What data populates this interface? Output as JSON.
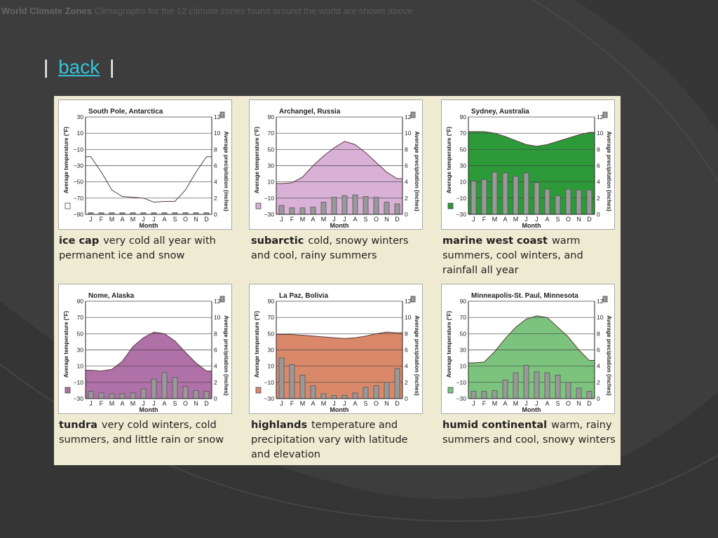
{
  "header": {
    "title": "World Climate Zones",
    "subtitle": "Climagraphs for the 12 climate zones found around the world are shown above"
  },
  "nav": {
    "sep_left": "|",
    "back_label": "back",
    "sep_right": "|"
  },
  "axes": {
    "temp_label": "Average temperature (°F)",
    "precip_label": "Average precipitation (inches)",
    "month_label": "Month",
    "months": [
      "J",
      "F",
      "M",
      "A",
      "M",
      "J",
      "J",
      "A",
      "S",
      "O",
      "N",
      "D"
    ],
    "temp_ticks": [
      "90",
      "70",
      "50",
      "30",
      "10",
      "−10",
      "−30",
      "−50",
      "−70",
      "−90"
    ],
    "precip_ticks": [
      "12",
      "10",
      "8",
      "6",
      "4",
      "2",
      "0"
    ]
  },
  "chart_data": [
    {
      "type": "bar",
      "title": "South Pole, Antarctica",
      "zone": "ice cap",
      "description": "very cold all year with permanent ice and snow",
      "xlabel": "Month",
      "ylabel": "Average temperature (°F)",
      "y2label": "Average precipitation (inches)",
      "ylim": [
        -90,
        30
      ],
      "y2lim": [
        0,
        12
      ],
      "categories": [
        "J",
        "F",
        "M",
        "A",
        "M",
        "J",
        "J",
        "A",
        "S",
        "O",
        "N",
        "D"
      ],
      "temperature": [
        -19,
        -38,
        -60,
        -68,
        -69,
        -70,
        -75,
        -74,
        -74,
        -60,
        -38,
        -19
      ],
      "precipitation": [
        0.2,
        0.2,
        0.2,
        0.2,
        0.2,
        0.2,
        0.2,
        0.2,
        0.2,
        0.2,
        0.2,
        0.2
      ],
      "fill_color": "#ffffff",
      "grid": true
    },
    {
      "type": "bar",
      "title": "Archangel, Russia",
      "zone": "subarctic",
      "description": "cold, snowy winters and cool, rainy summers",
      "xlabel": "Month",
      "ylabel": "Average temperature (°F)",
      "y2label": "Average precipitation (inches)",
      "ylim": [
        -30,
        90
      ],
      "y2lim": [
        0,
        12
      ],
      "categories": [
        "J",
        "F",
        "M",
        "A",
        "M",
        "J",
        "J",
        "A",
        "S",
        "O",
        "N",
        "D"
      ],
      "temperature": [
        8,
        9,
        16,
        30,
        42,
        52,
        60,
        56,
        46,
        34,
        22,
        14
      ],
      "precipitation": [
        1.1,
        0.8,
        0.8,
        0.9,
        1.5,
        2.1,
        2.3,
        2.4,
        2.2,
        2.1,
        1.5,
        1.3
      ],
      "fill_color": "#d9b0d6",
      "grid": true
    },
    {
      "type": "bar",
      "title": "Sydney, Australia",
      "zone": "marine west coast",
      "description": "warm summers, cool winters, and rainfall all year",
      "xlabel": "Month",
      "ylabel": "Average temperature (°F)",
      "y2label": "Average precipitation (inches)",
      "ylim": [
        -30,
        90
      ],
      "y2lim": [
        0,
        12
      ],
      "categories": [
        "J",
        "F",
        "M",
        "A",
        "M",
        "J",
        "J",
        "A",
        "S",
        "O",
        "N",
        "D"
      ],
      "temperature": [
        72,
        72,
        70,
        66,
        61,
        56,
        54,
        56,
        60,
        64,
        68,
        71
      ],
      "precipitation": [
        4.1,
        4.3,
        5.2,
        5.1,
        4.7,
        5.1,
        3.9,
        3.1,
        2.3,
        3.1,
        3.0,
        3.0
      ],
      "fill_color": "#2d9a3a",
      "grid": true
    },
    {
      "type": "bar",
      "title": "Nome, Alaska",
      "zone": "tundra",
      "description": "very cold winters, cold summers, and little rain or snow",
      "xlabel": "Month",
      "ylabel": "Average temperature (°F)",
      "y2label": "Average precipitation (inches)",
      "ylim": [
        -30,
        90
      ],
      "y2lim": [
        0,
        12
      ],
      "categories": [
        "J",
        "F",
        "M",
        "A",
        "M",
        "J",
        "J",
        "A",
        "S",
        "O",
        "N",
        "D"
      ],
      "temperature": [
        5,
        4,
        6,
        16,
        34,
        45,
        52,
        50,
        41,
        27,
        14,
        4
      ],
      "precipitation": [
        0.9,
        0.7,
        0.6,
        0.6,
        0.7,
        1.2,
        2.4,
        3.2,
        2.6,
        1.5,
        1.0,
        0.9
      ],
      "fill_color": "#b070a8",
      "grid": true
    },
    {
      "type": "bar",
      "title": "La Paz, Bolivia",
      "zone": "highlands",
      "description": "temperature and precipitation vary with latitude and elevation",
      "xlabel": "Month",
      "ylabel": "Average temperature (°F)",
      "y2label": "Average precipitation (inches)",
      "ylim": [
        -30,
        90
      ],
      "y2lim": [
        0,
        12
      ],
      "categories": [
        "J",
        "F",
        "M",
        "A",
        "M",
        "J",
        "J",
        "A",
        "S",
        "O",
        "N",
        "D"
      ],
      "temperature": [
        49,
        49,
        48,
        47,
        46,
        45,
        44,
        45,
        47,
        50,
        52,
        51
      ],
      "precipitation": [
        5.0,
        4.2,
        2.9,
        1.6,
        0.6,
        0.4,
        0.4,
        0.7,
        1.4,
        1.6,
        2.0,
        3.7
      ],
      "fill_color": "#d9896a",
      "grid": true
    },
    {
      "type": "bar",
      "title": "Minneapolis-St. Paul, Minnesota",
      "zone": "humid continental",
      "description": "warm, rainy summers and cool, snowy winters",
      "xlabel": "Month",
      "ylabel": "Average temperature (°F)",
      "y2label": "Average precipitation (inches)",
      "ylim": [
        -30,
        90
      ],
      "y2lim": [
        0,
        12
      ],
      "categories": [
        "J",
        "F",
        "M",
        "A",
        "M",
        "J",
        "J",
        "A",
        "S",
        "O",
        "N",
        "D"
      ],
      "temperature": [
        14,
        15,
        28,
        44,
        58,
        68,
        72,
        70,
        58,
        46,
        30,
        17
      ],
      "precipitation": [
        0.9,
        0.9,
        1.0,
        2.3,
        3.2,
        4.1,
        3.3,
        3.2,
        2.9,
        2.0,
        1.3,
        0.9
      ],
      "fill_color": "#7cc47e",
      "grid": true
    }
  ]
}
